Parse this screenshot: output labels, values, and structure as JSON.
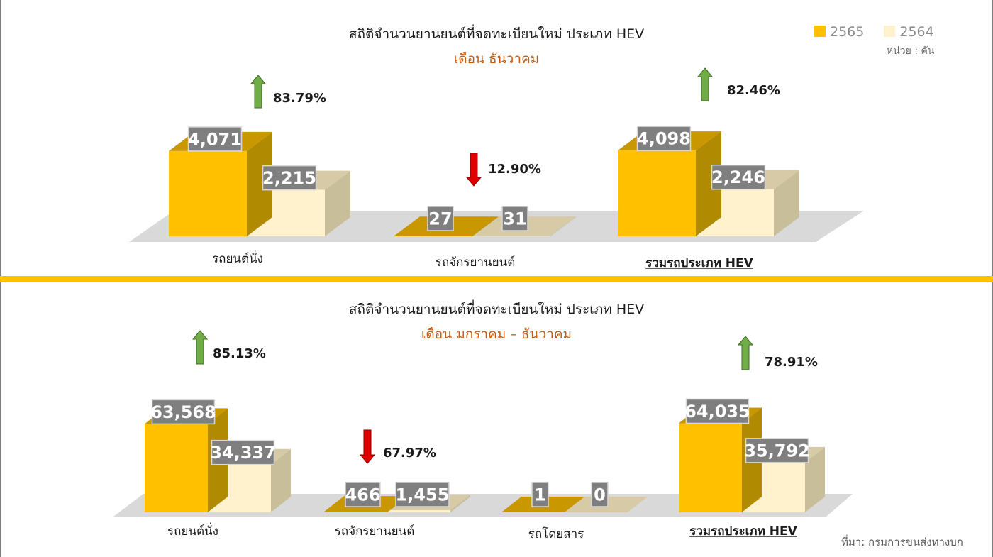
{
  "legend": [
    {
      "label": "2565",
      "color": "#FFC000"
    },
    {
      "label": "2564",
      "color": "#FFF2CC"
    }
  ],
  "unit_label": "หน่วย : คัน",
  "source_label": "ที่มา: กรมการขนส่งทางบก",
  "chart_data": [
    {
      "type": "bar",
      "title": "สถิติจำนวนยานยนต์ที่จดทะเบียนใหม่ ประเภท HEV",
      "subtitle": "เดือน ธันวาคม",
      "categories": [
        "รถยนต์นั่ง",
        "รถจักรยานยนต์",
        "รวมรถประเภท HEV"
      ],
      "series": [
        {
          "name": "2565",
          "values": [
            4071,
            27,
            4098
          ]
        },
        {
          "name": "2564",
          "values": [
            2215,
            31,
            2246
          ]
        }
      ],
      "value_labels": [
        [
          "4,071",
          "27",
          "4,098"
        ],
        [
          "2,215",
          "31",
          "2,246"
        ]
      ],
      "changes": [
        {
          "label": "83.79%",
          "direction": "up"
        },
        {
          "label": "12.90%",
          "direction": "down"
        },
        {
          "label": "82.46%",
          "direction": "up"
        }
      ],
      "emphasis": [
        false,
        false,
        true
      ]
    },
    {
      "type": "bar",
      "title": "สถิติจำนวนยานยนต์ที่จดทะเบียนใหม่ ประเภท HEV",
      "subtitle": "เดือน มกราคม – ธันวาคม",
      "categories": [
        "รถยนต์นั่ง",
        "รถจักรยานยนต์",
        "รถโดยสาร",
        "รวมรถประเภท HEV"
      ],
      "series": [
        {
          "name": "2565",
          "values": [
            63568,
            466,
            1,
            64035
          ]
        },
        {
          "name": "2564",
          "values": [
            34337,
            1455,
            0,
            35792
          ]
        }
      ],
      "value_labels": [
        [
          "63,568",
          "466",
          "1",
          "64,035"
        ],
        [
          "34,337",
          "1,455",
          "0",
          "35,792"
        ]
      ],
      "changes": [
        {
          "label": "85.13%",
          "direction": "up"
        },
        {
          "label": "67.97%",
          "direction": "down"
        },
        null,
        {
          "label": "78.91%",
          "direction": "up"
        }
      ],
      "emphasis": [
        false,
        false,
        false,
        true
      ]
    }
  ]
}
